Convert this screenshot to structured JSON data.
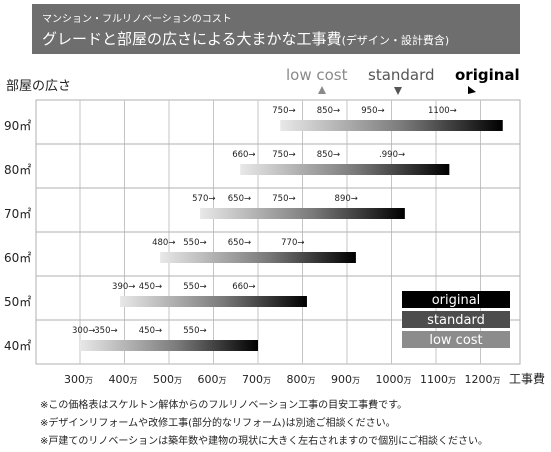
{
  "header": {
    "subtitle": "マンション・フルリノベーションのコスト",
    "title": "グレードと部屋の広さによる大まかな工事費",
    "title_note": "(デザイン・設計費含)"
  },
  "tiers": [
    {
      "label": "low cost",
      "color": "#8a8a8a"
    },
    {
      "label": "standard",
      "color": "#555555"
    },
    {
      "label": "original",
      "color": "#000000"
    }
  ],
  "legend": [
    {
      "label": "original",
      "color": "#000000"
    },
    {
      "label": "standard",
      "color": "#4d4d4d"
    },
    {
      "label": "low cost",
      "color": "#8c8c8c"
    }
  ],
  "chart_data": {
    "type": "bar",
    "orientation": "horizontal-range",
    "ylabel": "部屋の広さ",
    "xlabel": "工事費",
    "x_unit": "万",
    "x_ticks": [
      300,
      400,
      500,
      600,
      700,
      800,
      900,
      1000,
      1100,
      1200
    ],
    "xlim": [
      300,
      1250
    ],
    "categories": [
      "90㎡",
      "80㎡",
      "70㎡",
      "60㎡",
      "50㎡",
      "40㎡"
    ],
    "rows": [
      {
        "category": "90㎡",
        "start": 750,
        "end": 1250,
        "labels": [
          {
            "text": "750→",
            "x": 750
          },
          {
            "text": "850→",
            "x": 850
          },
          {
            "text": "950→",
            "x": 950
          },
          {
            "text": "1100→",
            "x": 1100
          }
        ]
      },
      {
        "category": "80㎡",
        "start": 660,
        "end": 1130,
        "labels": [
          {
            "text": "660→",
            "x": 660
          },
          {
            "text": "750→",
            "x": 750
          },
          {
            "text": "850→",
            "x": 850
          },
          {
            "text": ".990→",
            "x": 990
          }
        ]
      },
      {
        "category": "70㎡",
        "start": 570,
        "end": 1030,
        "labels": [
          {
            "text": "570→",
            "x": 570
          },
          {
            "text": "650→",
            "x": 650
          },
          {
            "text": "750→",
            "x": 750
          },
          {
            "text": "890→",
            "x": 890
          }
        ]
      },
      {
        "category": "60㎡",
        "start": 480,
        "end": 920,
        "labels": [
          {
            "text": "480→",
            "x": 480
          },
          {
            "text": "550→",
            "x": 550
          },
          {
            "text": "650→",
            "x": 650
          },
          {
            "text": "770→",
            "x": 770
          }
        ]
      },
      {
        "category": "50㎡",
        "start": 390,
        "end": 810,
        "labels": [
          {
            "text": "390→",
            "x": 390
          },
          {
            "text": "450→",
            "x": 450
          },
          {
            "text": "550→",
            "x": 550
          },
          {
            "text": "660→",
            "x": 660
          }
        ]
      },
      {
        "category": "40㎡",
        "start": 300,
        "end": 700,
        "labels": [
          {
            "text": "300→",
            "x": 300
          },
          {
            "text": "350→",
            "x": 350
          },
          {
            "text": "450→",
            "x": 450
          },
          {
            "text": "550→",
            "x": 550
          }
        ]
      }
    ]
  },
  "footnotes": [
    "※この価格表はスケルトン解体からのフルリノベーション工事の目安工事費です。",
    "※デザインリフォームや改修工事(部分的なリフォーム)は別途ご相談ください。",
    "※戸建てのリノベーションは築年数や建物の現状に大きく左右されますので個別にご相談ください。"
  ]
}
